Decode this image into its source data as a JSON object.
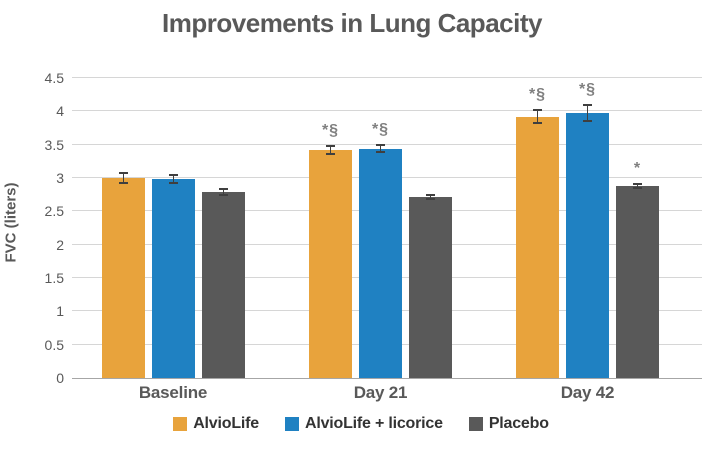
{
  "title": "Improvements in Lung Capacity",
  "colors": {
    "title_text": "#595959",
    "axis_text": "#595959",
    "gridline": "#d6d6d6",
    "axis_line": "#a6a6a6",
    "error_bar": "#3f3f3f",
    "annotation_text": "#808080",
    "legend_text": "#333333",
    "background": "#ffffff"
  },
  "chart_data": {
    "type": "bar",
    "title": "Improvements in Lung Capacity",
    "xlabel": "",
    "ylabel": "FVC (liters)",
    "ylim": [
      0,
      4.5
    ],
    "ytick_step": 0.5,
    "grid": true,
    "legend_position": "bottom",
    "categories": [
      "Baseline",
      "Day 21",
      "Day 42"
    ],
    "series": [
      {
        "name": "AlvioLife",
        "color": "#e8a33c",
        "values": [
          3.0,
          3.42,
          3.92
        ],
        "errors": [
          0.08,
          0.06,
          0.1
        ],
        "annotations": [
          "",
          "*§",
          "*§"
        ]
      },
      {
        "name": "AlvioLife + licorice",
        "color": "#1f81c2",
        "values": [
          2.98,
          3.44,
          3.97
        ],
        "errors": [
          0.06,
          0.05,
          0.12
        ],
        "annotations": [
          "",
          "*§",
          "*§"
        ]
      },
      {
        "name": "Placebo",
        "color": "#595959",
        "values": [
          2.79,
          2.72,
          2.88
        ],
        "errors": [
          0.05,
          0.03,
          0.03
        ],
        "annotations": [
          "",
          "",
          "*"
        ]
      }
    ]
  }
}
